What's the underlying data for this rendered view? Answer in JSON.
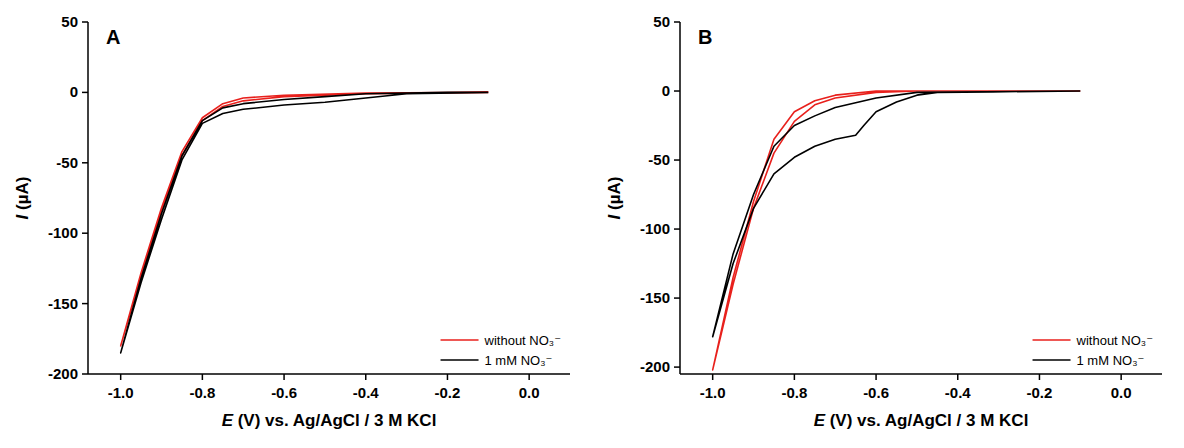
{
  "chart_data": [
    {
      "type": "line",
      "title": "A",
      "x_label": "E (V) vs. Ag/AgCl / 3 M KCl",
      "y_label": "I (µA)",
      "xlim": [
        -1.08,
        0.1
      ],
      "xticks": [
        {
          "value": -1,
          "label": "-1.0"
        },
        -0.8,
        -0.6,
        -0.4,
        -0.2,
        {
          "value": 0,
          "label": "0.0"
        }
      ],
      "ylim": [
        -200,
        50
      ],
      "yticks": [
        -200,
        -150,
        -100,
        -50,
        0,
        50
      ],
      "legend": "lower right",
      "series": [
        {
          "name": "without NO₃⁻",
          "color": "#e8201c",
          "x": [
            -0.1,
            -0.4,
            -0.6,
            -0.7,
            -0.75,
            -0.8,
            -0.85,
            -0.9,
            -0.95,
            -1.0,
            -0.95,
            -0.9,
            -0.85,
            -0.8,
            -0.75,
            -0.7,
            -0.6,
            -0.4,
            -0.1
          ],
          "values": [
            0,
            -1,
            -3,
            -6,
            -10,
            -20,
            -45,
            -85,
            -130,
            -180,
            -128,
            -82,
            -42,
            -18,
            -8,
            -4,
            -2,
            -0.5,
            0
          ]
        },
        {
          "name": "1 mM NO₃⁻",
          "color": "#000000",
          "x": [
            -0.1,
            -0.3,
            -0.4,
            -0.5,
            -0.6,
            -0.7,
            -0.75,
            -0.8,
            -0.85,
            -0.9,
            -0.95,
            -1.0,
            -0.95,
            -0.9,
            -0.85,
            -0.8,
            -0.75,
            -0.7,
            -0.6,
            -0.5,
            -0.4,
            -0.2,
            -0.1
          ],
          "values": [
            0,
            -1,
            -4,
            -7,
            -9,
            -12,
            -15,
            -22,
            -48,
            -90,
            -135,
            -185,
            -132,
            -86,
            -45,
            -20,
            -11,
            -8,
            -5,
            -3,
            -1,
            0,
            0
          ]
        }
      ]
    },
    {
      "type": "line",
      "title": "B",
      "x_label": "E (V) vs. Ag/AgCl / 3 M KCl",
      "y_label": "I (µA)",
      "xlim": [
        -1.08,
        0.1
      ],
      "xticks": [
        {
          "value": -1,
          "label": "-1.0"
        },
        -0.8,
        -0.6,
        -0.4,
        -0.2,
        {
          "value": 0,
          "label": "0.0"
        }
      ],
      "ylim": [
        -205,
        50
      ],
      "yticks": [
        -200,
        -150,
        -100,
        -50,
        0,
        50
      ],
      "legend": "lower right",
      "series": [
        {
          "name": "without NO₃⁻",
          "color": "#e8201c",
          "x": [
            -0.1,
            -0.5,
            -0.6,
            -0.7,
            -0.75,
            -0.8,
            -0.85,
            -0.9,
            -0.95,
            -1.0,
            -0.95,
            -0.9,
            -0.85,
            -0.8,
            -0.75,
            -0.7,
            -0.6,
            -0.1
          ],
          "values": [
            0,
            0,
            -1,
            -5,
            -10,
            -22,
            -45,
            -85,
            -140,
            -202,
            -135,
            -80,
            -35,
            -15,
            -7,
            -3,
            0,
            0
          ]
        },
        {
          "name": "1 mM NO₃⁻",
          "color": "#000000",
          "x": [
            -0.1,
            -0.45,
            -0.5,
            -0.55,
            -0.6,
            -0.63,
            -0.65,
            -0.7,
            -0.75,
            -0.8,
            -0.85,
            -0.9,
            -0.95,
            -1.0,
            -0.95,
            -0.9,
            -0.85,
            -0.8,
            -0.75,
            -0.7,
            -0.6,
            -0.5,
            -0.1
          ],
          "values": [
            0,
            -1,
            -3,
            -8,
            -15,
            -25,
            -32,
            -35,
            -40,
            -48,
            -60,
            -85,
            -125,
            -178,
            -118,
            -75,
            -40,
            -25,
            -18,
            -12,
            -5,
            -1,
            0
          ]
        }
      ]
    }
  ]
}
